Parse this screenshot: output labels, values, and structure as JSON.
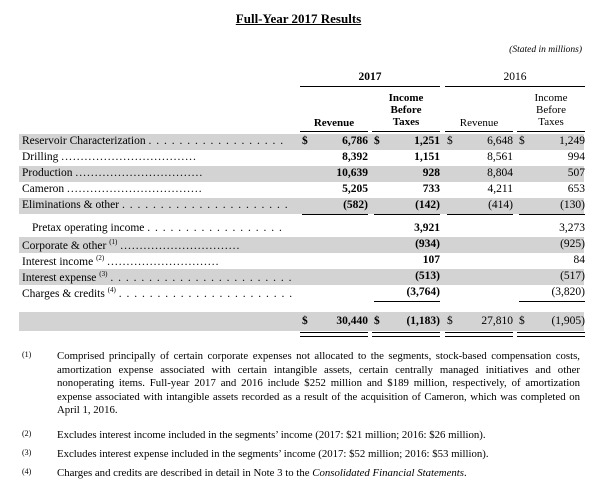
{
  "title": "Full-Year 2017 Results",
  "stated": "(Stated in millions)",
  "years": {
    "y2017": "2017",
    "y2016": "2016"
  },
  "headers": {
    "revenue": "Revenue",
    "income_line1": "Income",
    "income_line2": "Before",
    "income_line3": "Taxes"
  },
  "currency": "$",
  "rows": [
    {
      "label": "Reservoir Characterization",
      "sup": "",
      "dots": ". . . . . . . . . . . . . . . . . .",
      "rev17": "6,786",
      "inc17": "1,251",
      "rev16": "6,648",
      "inc16": "1,249",
      "dollars": true
    },
    {
      "label": "Drilling",
      "sup": "",
      "dots": "...................................",
      "rev17": "8,392",
      "inc17": "1,151",
      "rev16": "8,561",
      "inc16": "994"
    },
    {
      "label": "Production",
      "sup": "",
      "dots": ".................................",
      "rev17": "10,639",
      "inc17": "928",
      "rev16": "8,804",
      "inc16": "507"
    },
    {
      "label": "Cameron",
      "sup": "",
      "dots": "...................................",
      "rev17": "5,205",
      "inc17": "733",
      "rev16": "4,211",
      "inc16": "653"
    },
    {
      "label": "Eliminations & other",
      "sup": "",
      "dots": ". . . . . . . . . . . . . . . . . . . . . .",
      "rev17": "(582)",
      "inc17": "(142)",
      "rev16": "(414)",
      "inc16": "(130)"
    },
    {
      "label": "Pretax operating income",
      "sup": "",
      "dots": ". . . . . . . . . . . . . . . . . .",
      "rev17": "",
      "inc17": "3,921",
      "rev16": "",
      "inc16": "3,273",
      "indent": true
    },
    {
      "label": "Corporate & other",
      "sup": "(1)",
      "dots": "...............................",
      "rev17": "",
      "inc17": "(934)",
      "rev16": "",
      "inc16": "(925)"
    },
    {
      "label": "Interest income",
      "sup": "(2)",
      "dots": ".............................",
      "rev17": "",
      "inc17": "107",
      "rev16": "",
      "inc16": "84"
    },
    {
      "label": "Interest expense",
      "sup": "(3)",
      "dots": ". . . . . . . . . . . . . . . . . . . . . . . . .",
      "rev17": "",
      "inc17": "(513)",
      "rev16": "",
      "inc16": "(517)"
    },
    {
      "label": "Charges & credits",
      "sup": "(4)",
      "dots": ". . . . . . . . . . . . . . . . . . . . . . . . .",
      "rev17": "",
      "inc17": "(3,764)",
      "rev16": "",
      "inc16": "(3,820)"
    }
  ],
  "total": {
    "rev17": "30,440",
    "inc17": "(1,183)",
    "rev16": "27,810",
    "inc16": "(1,905)"
  },
  "footnotes": [
    {
      "num": "(1)",
      "text": "Comprised principally of certain corporate expenses not allocated to the segments, stock-based compensation costs, amortization expense associated with certain intangible assets, certain centrally managed initiatives and other nonoperating items. Full-year 2017 and 2016 include $252 million and $189 million, respectively, of amortization expense associated with intangible assets recorded as a result of the acquisition of Cameron, which was completed on April 1, 2016."
    },
    {
      "num": "(2)",
      "text": "Excludes interest income included in the segments’ income (2017: $21 million; 2016: $26 million)."
    },
    {
      "num": "(3)",
      "text": "Excludes interest expense included in the segments’ income (2017: $52 million; 2016: $53 million)."
    },
    {
      "num": "(4)",
      "text_pre": "Charges and credits are described in detail in Note 3 to the ",
      "text_italic": "Consolidated Financial Statements",
      "text_post": "."
    }
  ]
}
